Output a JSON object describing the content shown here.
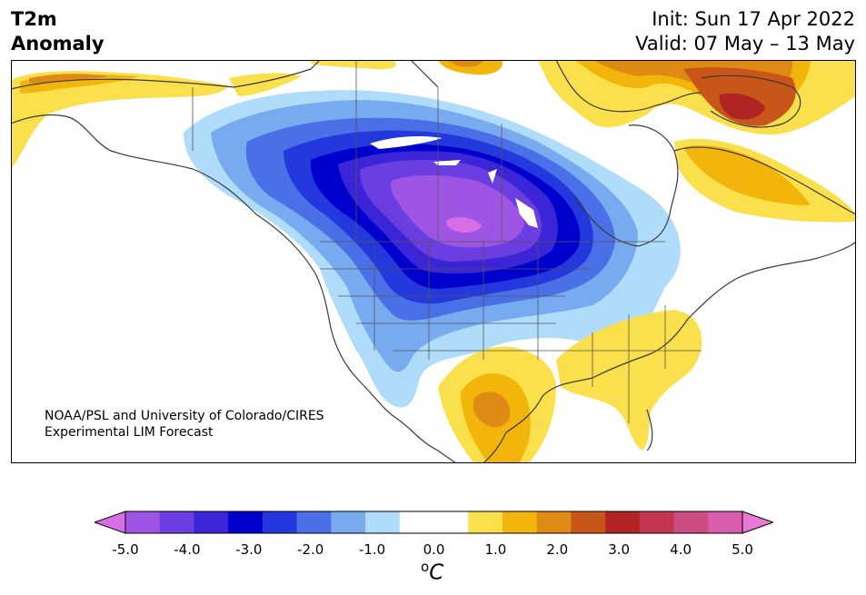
{
  "header": {
    "title_line1": "T2m",
    "title_line2": "Anomaly",
    "init": "Init: Sun 17 Apr 2022",
    "valid": "Valid: 07 May – 13 May"
  },
  "credit": {
    "line1": "NOAA/PSL and University of Colorado/CIRES",
    "line2": "Experimental LIM Forecast"
  },
  "map": {
    "variable": "T2m",
    "region": "North America",
    "anomalies": [
      {
        "area": "Canadian Prairies / northern Plains",
        "max_anomaly": -5.0
      },
      {
        "area": "Pacific Northwest / Great Basin",
        "max_anomaly": -2.5
      },
      {
        "area": "Greenland (southwest)",
        "max_anomaly": 3.0
      },
      {
        "area": "Hudson Bay east / Labrador",
        "max_anomaly": 1.5
      },
      {
        "area": "Southern Plains / Mexico",
        "max_anomaly": 2.0
      },
      {
        "area": "Southeast US",
        "max_anomaly": 1.0
      },
      {
        "area": "Alaska (south)",
        "max_anomaly": 1.5
      }
    ]
  },
  "colorbar": {
    "min": -5.0,
    "max": 5.0,
    "unit_symbol": "C",
    "unit_prefix": "o",
    "tick_labels": [
      "-5.0",
      "-4.0",
      "-3.0",
      "-2.0",
      "-1.0",
      "0.0",
      "1.0",
      "2.0",
      "3.0",
      "4.0",
      "5.0"
    ],
    "colors": [
      "#d86ee6",
      "#9f55e3",
      "#6a3ee0",
      "#3b25d6",
      "#0000cc",
      "#2338dd",
      "#4b6fe6",
      "#78aaf0",
      "#b0dcfb",
      "#ffffff",
      "#ffffff",
      "#fbe04e",
      "#f2b50c",
      "#df8a14",
      "#c8561a",
      "#b02424",
      "#c43550",
      "#cc4d82",
      "#d95eae",
      "#e878d6"
    ]
  }
}
